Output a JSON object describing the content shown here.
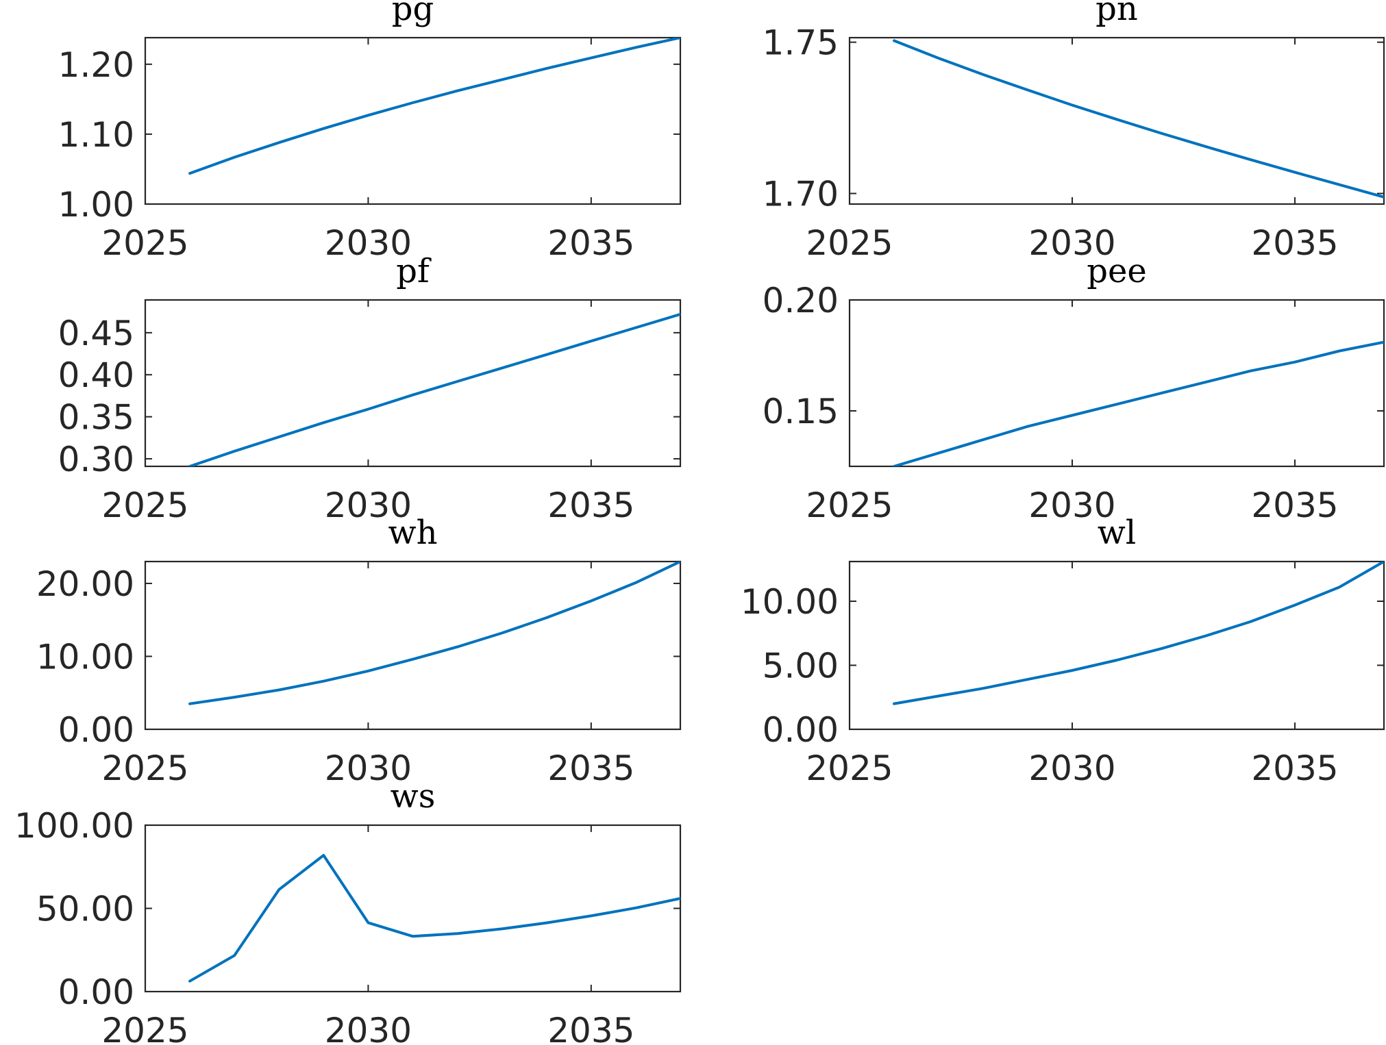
{
  "colors": {
    "line": "#0072BD",
    "axes": "#262626",
    "background": "#ffffff"
  },
  "chart_data": [
    {
      "type": "line",
      "title": "pg",
      "x": [
        2026,
        2027,
        2028,
        2029,
        2030,
        2031,
        2032,
        2033,
        2034,
        2035,
        2036,
        2037
      ],
      "series": [
        {
          "values": [
            1.044,
            1.067,
            1.088,
            1.108,
            1.127,
            1.145,
            1.162,
            1.178,
            1.194,
            1.209,
            1.224,
            1.238
          ]
        }
      ],
      "xlim": [
        2025,
        2037
      ],
      "ylim": [
        1.0,
        1.238
      ],
      "xticks": [
        2025,
        2030,
        2035
      ],
      "xtick_labels": [
        "2025",
        "2030",
        "2035"
      ],
      "yticks": [
        1.0,
        1.1,
        1.2
      ],
      "ytick_labels": [
        "1.00",
        "1.10",
        "1.20"
      ],
      "grid": false
    },
    {
      "type": "line",
      "title": "pn",
      "x": [
        2026,
        2027,
        2028,
        2029,
        2030,
        2031,
        2032,
        2033,
        2034,
        2035,
        2036,
        2037
      ],
      "series": [
        {
          "values": [
            1.7505,
            1.7447,
            1.7393,
            1.7342,
            1.7292,
            1.7245,
            1.7199,
            1.7155,
            1.7112,
            1.707,
            1.7029,
            1.6988
          ]
        }
      ],
      "xlim": [
        2025,
        2037
      ],
      "ylim": [
        1.6965,
        1.7515
      ],
      "xticks": [
        2025,
        2030,
        2035
      ],
      "xtick_labels": [
        "2025",
        "2030",
        "2035"
      ],
      "yticks": [
        1.7,
        1.75
      ],
      "ytick_labels": [
        "1.70",
        "1.75"
      ],
      "grid": false
    },
    {
      "type": "line",
      "title": "pf",
      "x": [
        2026,
        2027,
        2028,
        2029,
        2030,
        2031,
        2032,
        2033,
        2034,
        2035,
        2036,
        2037
      ],
      "series": [
        {
          "values": [
            0.291,
            0.309,
            0.326,
            0.343,
            0.359,
            0.376,
            0.392,
            0.408,
            0.424,
            0.44,
            0.456,
            0.472
          ]
        }
      ],
      "xlim": [
        2025,
        2037
      ],
      "ylim": [
        0.291,
        0.489
      ],
      "xticks": [
        2025,
        2030,
        2035
      ],
      "xtick_labels": [
        "2025",
        "2030",
        "2035"
      ],
      "yticks": [
        0.3,
        0.35,
        0.4,
        0.45
      ],
      "ytick_labels": [
        "0.30",
        "0.35",
        "0.40",
        "0.45"
      ],
      "grid": false
    },
    {
      "type": "line",
      "title": "pee",
      "x": [
        2026,
        2027,
        2028,
        2029,
        2030,
        2031,
        2032,
        2033,
        2034,
        2035,
        2036,
        2037
      ],
      "series": [
        {
          "values": [
            0.125,
            0.131,
            0.137,
            0.143,
            0.148,
            0.153,
            0.158,
            0.163,
            0.168,
            0.172,
            0.177,
            0.181
          ]
        }
      ],
      "xlim": [
        2025,
        2037
      ],
      "ylim": [
        0.125,
        0.2
      ],
      "xticks": [
        2025,
        2030,
        2035
      ],
      "xtick_labels": [
        "2025",
        "2030",
        "2035"
      ],
      "yticks": [
        0.15,
        0.2
      ],
      "ytick_labels": [
        "0.15",
        "0.20"
      ],
      "grid": false
    },
    {
      "type": "line",
      "title": "wh",
      "x": [
        2026,
        2027,
        2028,
        2029,
        2030,
        2031,
        2032,
        2033,
        2034,
        2035,
        2036,
        2037
      ],
      "series": [
        {
          "values": [
            3.5,
            4.4,
            5.4,
            6.6,
            8.0,
            9.6,
            11.3,
            13.2,
            15.3,
            17.6,
            20.1,
            23.0
          ]
        }
      ],
      "xlim": [
        2025,
        2037
      ],
      "ylim": [
        0,
        23.0
      ],
      "xticks": [
        2025,
        2030,
        2035
      ],
      "xtick_labels": [
        "2025",
        "2030",
        "2035"
      ],
      "yticks": [
        0,
        10,
        20
      ],
      "ytick_labels": [
        "0.00",
        "10.00",
        "20.00"
      ],
      "grid": false
    },
    {
      "type": "line",
      "title": "wl",
      "x": [
        2026,
        2027,
        2028,
        2029,
        2030,
        2031,
        2032,
        2033,
        2034,
        2035,
        2036,
        2037
      ],
      "series": [
        {
          "values": [
            2.0,
            2.6,
            3.2,
            3.9,
            4.6,
            5.4,
            6.3,
            7.3,
            8.4,
            9.7,
            11.1,
            13.1
          ]
        }
      ],
      "xlim": [
        2025,
        2037
      ],
      "ylim": [
        0,
        13.1
      ],
      "xticks": [
        2025,
        2030,
        2035
      ],
      "xtick_labels": [
        "2025",
        "2030",
        "2035"
      ],
      "yticks": [
        0,
        5,
        10
      ],
      "ytick_labels": [
        "0.00",
        "5.00",
        "10.00"
      ],
      "grid": false
    },
    {
      "type": "line",
      "title": "ws",
      "x": [
        2026,
        2027,
        2028,
        2029,
        2030,
        2031,
        2032,
        2033,
        2034,
        2035,
        2036,
        2037
      ],
      "series": [
        {
          "values": [
            6.3,
            21.7,
            61.3,
            81.9,
            41.4,
            33.2,
            34.9,
            37.7,
            41.3,
            45.5,
            50.3,
            56.0
          ]
        }
      ],
      "xlim": [
        2025,
        2037
      ],
      "ylim": [
        0,
        100
      ],
      "xticks": [
        2025,
        2030,
        2035
      ],
      "xtick_labels": [
        "2025",
        "2030",
        "2035"
      ],
      "yticks": [
        0,
        50,
        100
      ],
      "ytick_labels": [
        "0.00",
        "50.00",
        "100.00"
      ],
      "grid": false
    }
  ]
}
